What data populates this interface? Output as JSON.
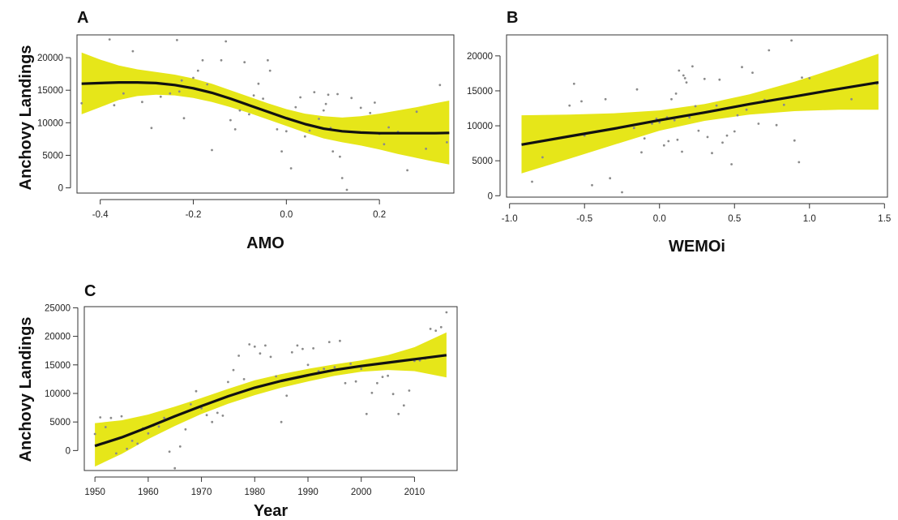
{
  "figure": {
    "panels": [
      {
        "letter": "A",
        "ylabel": "Anchovy Landings",
        "xlabel": "AMO"
      },
      {
        "letter": "B",
        "ylabel": "",
        "xlabel": "WEMOi"
      },
      {
        "letter": "C",
        "ylabel": "Anchovy Landings",
        "xlabel": "Year"
      }
    ],
    "colors": {
      "band": "#e6e619",
      "line": "#111111",
      "points": "#8a8a8a"
    }
  },
  "chart_data": [
    {
      "type": "line",
      "panel": "A",
      "title": "",
      "xlabel": "AMO",
      "ylabel": "Anchovy Landings",
      "xlim": [
        -0.45,
        0.36
      ],
      "ylim": [
        -800,
        23500
      ],
      "xticks": [
        -0.4,
        -0.2,
        0.0,
        0.2
      ],
      "xtick_labels": [
        "-0.4",
        "-0.2",
        "0.0",
        "0.2"
      ],
      "yticks": [
        0,
        5000,
        10000,
        15000,
        20000
      ],
      "ytick_labels": [
        "0",
        "5000",
        "10000",
        "15000",
        "20000"
      ],
      "grid": false,
      "series": [
        {
          "kind": "fit",
          "x": [
            -0.44,
            -0.4,
            -0.36,
            -0.32,
            -0.28,
            -0.24,
            -0.2,
            -0.16,
            -0.12,
            -0.08,
            -0.04,
            0.0,
            0.04,
            0.08,
            0.12,
            0.16,
            0.2,
            0.24,
            0.28,
            0.32,
            0.35
          ],
          "y": [
            16000,
            16100,
            16200,
            16200,
            16100,
            15800,
            15300,
            14600,
            13700,
            12700,
            11700,
            10700,
            9800,
            9100,
            8700,
            8500,
            8400,
            8400,
            8400,
            8400,
            8450
          ]
        },
        {
          "kind": "band_upper",
          "x": [
            -0.44,
            -0.4,
            -0.36,
            -0.32,
            -0.28,
            -0.24,
            -0.2,
            -0.16,
            -0.12,
            -0.08,
            -0.04,
            0.0,
            0.04,
            0.08,
            0.12,
            0.16,
            0.2,
            0.24,
            0.28,
            0.32,
            0.35
          ],
          "y": [
            20800,
            19700,
            18800,
            18200,
            17800,
            17400,
            16800,
            16000,
            15000,
            14000,
            13000,
            12100,
            11400,
            11000,
            10800,
            11000,
            11400,
            11900,
            12400,
            13000,
            13400
          ]
        },
        {
          "kind": "band_lower",
          "x": [
            -0.44,
            -0.4,
            -0.36,
            -0.32,
            -0.28,
            -0.24,
            -0.2,
            -0.16,
            -0.12,
            -0.08,
            -0.04,
            0.0,
            0.04,
            0.08,
            0.12,
            0.16,
            0.2,
            0.24,
            0.28,
            0.32,
            0.35
          ],
          "y": [
            11300,
            12400,
            13500,
            14100,
            14300,
            14200,
            13800,
            13200,
            12400,
            11500,
            10500,
            9500,
            8500,
            7600,
            7000,
            6500,
            5900,
            5200,
            4600,
            4000,
            3600
          ]
        },
        {
          "kind": "points",
          "x": [
            -0.44,
            -0.38,
            -0.37,
            -0.35,
            -0.33,
            -0.31,
            -0.29,
            -0.27,
            -0.25,
            -0.235,
            -0.23,
            -0.225,
            -0.22,
            -0.2,
            -0.19,
            -0.18,
            -0.17,
            -0.16,
            -0.14,
            -0.13,
            -0.12,
            -0.11,
            -0.1,
            -0.09,
            -0.08,
            -0.07,
            -0.06,
            -0.05,
            -0.04,
            -0.035,
            -0.02,
            -0.01,
            0.0,
            0.01,
            0.02,
            0.03,
            0.04,
            0.05,
            0.06,
            0.07,
            0.08,
            0.085,
            0.09,
            0.095,
            0.1,
            0.11,
            0.115,
            0.12,
            0.13,
            0.14,
            0.16,
            0.18,
            0.19,
            0.2,
            0.21,
            0.22,
            0.24,
            0.26,
            0.28,
            0.3,
            0.33,
            0.345
          ],
          "y": [
            13000,
            22800,
            12700,
            14500,
            21000,
            13200,
            9200,
            14000,
            14500,
            22700,
            14800,
            16500,
            10700,
            16900,
            18000,
            19600,
            15900,
            5800,
            19600,
            22500,
            10400,
            9000,
            11900,
            19300,
            11300,
            14200,
            16000,
            13700,
            19600,
            18000,
            9000,
            5600,
            8700,
            3000,
            12400,
            13900,
            7900,
            8800,
            14700,
            10600,
            11900,
            12900,
            14300,
            9200,
            5600,
            14400,
            4800,
            1500,
            -300,
            13800,
            12300,
            11500,
            13100,
            8300,
            6700,
            9300,
            8600,
            2700,
            11700,
            6000,
            15800,
            7000
          ]
        }
      ]
    },
    {
      "type": "line",
      "panel": "B",
      "title": "",
      "xlabel": "WEMOi",
      "ylabel": "",
      "xlim": [
        -1.02,
        1.52
      ],
      "ylim": [
        -200,
        23000
      ],
      "xticks": [
        -1.0,
        -0.5,
        0.0,
        0.5,
        1.0,
        1.5
      ],
      "xtick_labels": [
        "-1.0",
        "-0.5",
        "0.0",
        "0.5",
        "1.0",
        "1.5"
      ],
      "yticks": [
        0,
        5000,
        10000,
        15000,
        20000
      ],
      "ytick_labels": [
        "0",
        "5000",
        "10000",
        "15000",
        "20000"
      ],
      "grid": false,
      "series": [
        {
          "kind": "fit",
          "x": [
            -0.92,
            -0.6,
            -0.3,
            0.0,
            0.3,
            0.6,
            0.9,
            1.2,
            1.46
          ],
          "y": [
            7300,
            8500,
            9600,
            10800,
            11900,
            13100,
            14200,
            15300,
            16200
          ]
        },
        {
          "kind": "band_upper",
          "x": [
            -0.92,
            -0.6,
            -0.3,
            0.0,
            0.3,
            0.6,
            0.9,
            1.2,
            1.46
          ],
          "y": [
            11500,
            11600,
            11800,
            12200,
            13100,
            14500,
            16300,
            18400,
            20300
          ]
        },
        {
          "kind": "band_lower",
          "x": [
            -0.92,
            -0.6,
            -0.3,
            0.0,
            0.3,
            0.6,
            0.9,
            1.2,
            1.46
          ],
          "y": [
            3200,
            5300,
            7300,
            9300,
            10700,
            11600,
            12100,
            12300,
            12300
          ]
        },
        {
          "kind": "points",
          "x": [
            -0.85,
            -0.78,
            -0.6,
            -0.57,
            -0.52,
            -0.5,
            -0.45,
            -0.36,
            -0.33,
            -0.25,
            -0.17,
            -0.15,
            -0.12,
            -0.1,
            -0.05,
            -0.02,
            0.0,
            0.03,
            0.05,
            0.06,
            0.08,
            0.1,
            0.11,
            0.12,
            0.13,
            0.15,
            0.16,
            0.17,
            0.18,
            0.2,
            0.22,
            0.24,
            0.26,
            0.3,
            0.32,
            0.35,
            0.38,
            0.4,
            0.42,
            0.45,
            0.48,
            0.5,
            0.52,
            0.55,
            0.58,
            0.62,
            0.66,
            0.7,
            0.73,
            0.78,
            0.83,
            0.88,
            0.9,
            0.93,
            0.95,
            1.0,
            1.28,
            1.45
          ],
          "y": [
            2000,
            5500,
            12900,
            16000,
            13500,
            8600,
            1500,
            13800,
            2500,
            500,
            9700,
            15200,
            6200,
            8200,
            10300,
            11000,
            10500,
            7200,
            11200,
            7800,
            13800,
            10800,
            14600,
            8000,
            17900,
            6300,
            17200,
            16800,
            16200,
            11200,
            18500,
            12800,
            9300,
            16700,
            8400,
            6100,
            12900,
            16600,
            7600,
            8600,
            4500,
            9200,
            11500,
            18400,
            12300,
            17600,
            10300,
            13700,
            20800,
            10100,
            13000,
            22200,
            7900,
            4800,
            16900,
            16800,
            13800,
            16000
          ]
        }
      ]
    },
    {
      "type": "line",
      "panel": "C",
      "title": "",
      "xlabel": "Year",
      "ylabel": "Anchovy Landings",
      "xlim": [
        1948,
        2018
      ],
      "ylim": [
        -3500,
        25200
      ],
      "xticks": [
        1950,
        1960,
        1970,
        1980,
        1990,
        2000,
        2010
      ],
      "xtick_labels": [
        "1950",
        "1960",
        "1970",
        "1980",
        "1990",
        "2000",
        "2010"
      ],
      "yticks": [
        0,
        5000,
        10000,
        15000,
        20000,
        25000
      ],
      "ytick_labels": [
        "0",
        "5000",
        "10000",
        "15000",
        "20000",
        "25000"
      ],
      "grid": false,
      "series": [
        {
          "kind": "fit",
          "x": [
            1950,
            1955,
            1960,
            1965,
            1970,
            1975,
            1980,
            1985,
            1990,
            1995,
            2000,
            2005,
            2010,
            2016
          ],
          "y": [
            800,
            2300,
            4100,
            6000,
            7800,
            9500,
            11000,
            12200,
            13200,
            14100,
            14800,
            15400,
            16000,
            16700
          ]
        },
        {
          "kind": "band_upper",
          "x": [
            1950,
            1955,
            1960,
            1965,
            1970,
            1975,
            1980,
            1985,
            1990,
            1995,
            2000,
            2005,
            2010,
            2016
          ],
          "y": [
            4800,
            5300,
            6300,
            7700,
            9200,
            10800,
            12300,
            13400,
            14300,
            15100,
            15800,
            16700,
            18100,
            20700
          ]
        },
        {
          "kind": "band_lower",
          "x": [
            1950,
            1955,
            1960,
            1965,
            1970,
            1975,
            1980,
            1985,
            1990,
            1995,
            2000,
            2005,
            2010,
            2016
          ],
          "y": [
            -2800,
            -600,
            2000,
            4300,
            6400,
            8200,
            9700,
            11000,
            12100,
            13100,
            13800,
            14100,
            13900,
            12800
          ]
        },
        {
          "kind": "points",
          "x": [
            1950,
            1951,
            1952,
            1953,
            1954,
            1955,
            1956,
            1957,
            1958,
            1959,
            1960,
            1961,
            1962,
            1963,
            1964,
            1965,
            1966,
            1967,
            1968,
            1969,
            1970,
            1971,
            1972,
            1973,
            1974,
            1975,
            1976,
            1977,
            1978,
            1979,
            1980,
            1981,
            1982,
            1983,
            1984,
            1985,
            1986,
            1987,
            1988,
            1989,
            1990,
            1991,
            1992,
            1993,
            1994,
            1995,
            1996,
            1997,
            1998,
            1999,
            2000,
            2001,
            2002,
            2003,
            2004,
            2005,
            2006,
            2007,
            2008,
            2009,
            2010,
            2011,
            2012,
            2013,
            2014,
            2015,
            2016
          ],
          "y": [
            2900,
            5800,
            4100,
            5700,
            -500,
            6000,
            300,
            1700,
            1200,
            3900,
            3000,
            4400,
            4200,
            5700,
            -200,
            -3100,
            700,
            3700,
            8100,
            10400,
            7400,
            6200,
            5000,
            6600,
            6100,
            12000,
            14100,
            16600,
            12500,
            18600,
            18200,
            17000,
            18400,
            16400,
            13000,
            5000,
            9600,
            17200,
            18400,
            17800,
            15000,
            17900,
            13900,
            14300,
            19000,
            14600,
            19200,
            11800,
            15200,
            12100,
            14300,
            6400,
            10100,
            11800,
            12900,
            13100,
            9900,
            6400,
            7900,
            10500,
            15700,
            15800,
            16100,
            21300,
            21000,
            21600,
            24200
          ]
        }
      ]
    }
  ]
}
